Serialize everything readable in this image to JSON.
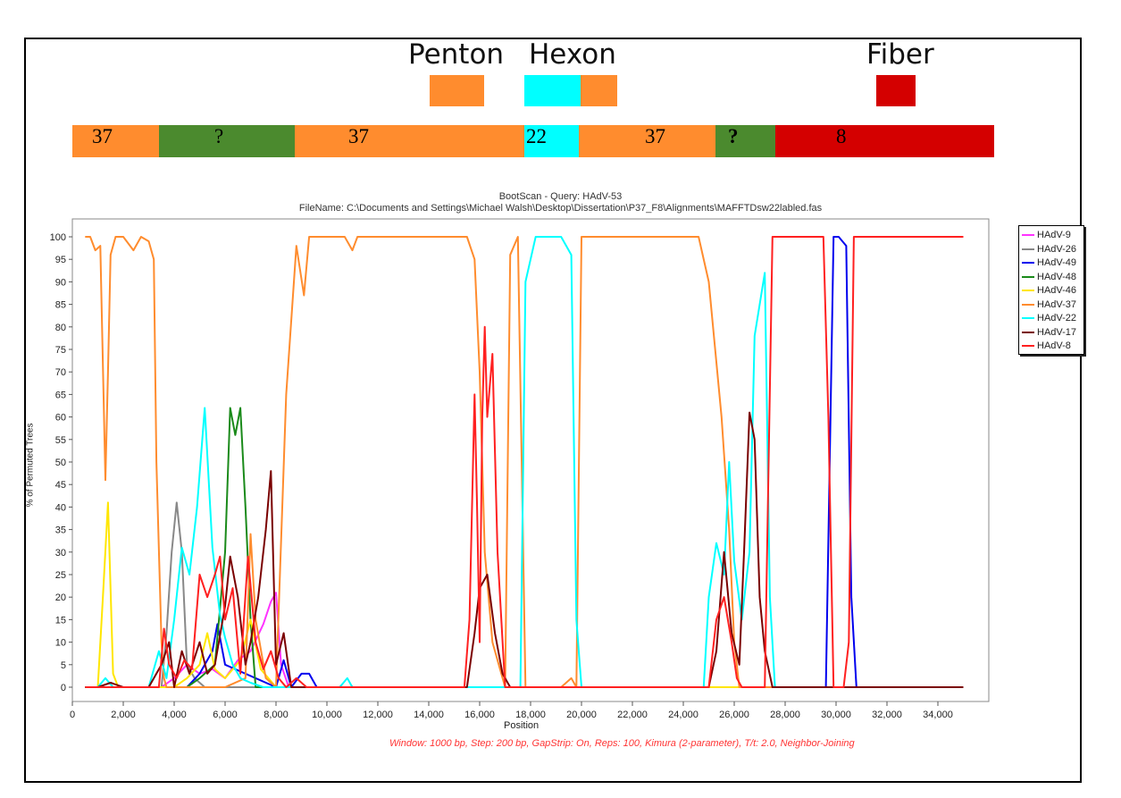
{
  "genes": [
    {
      "label": "Penton",
      "color": "#ff8c2e"
    },
    {
      "label": "Hexon",
      "color": "#00ffff"
    },
    {
      "label": "Fiber",
      "color": "#d40000"
    }
  ],
  "genome_bar": [
    {
      "label": "37",
      "color": "#ff8c2e"
    },
    {
      "label": "?",
      "color": "#4b8a2e"
    },
    {
      "label": "37",
      "color": "#ff8c2e"
    },
    {
      "label": "22",
      "color": "#00ffff"
    },
    {
      "label": "37",
      "color": "#ff8c2e"
    },
    {
      "label": "?",
      "color": "#4b8a2e"
    },
    {
      "label": "8",
      "color": "#d40000"
    }
  ],
  "chart_data": {
    "type": "line",
    "title": "BootScan - Query: HAdV-53",
    "subtitle": "FileName: C:\\Documents and Settings\\Michael Walsh\\Desktop\\Dissertation\\P37_F8\\Alignments\\MAFFTDsw22labled.fas",
    "xlabel": "Position",
    "ylabel": "% of Permuted Trees",
    "xlim": [
      0,
      36000
    ],
    "ylim": [
      0,
      100
    ],
    "xticks": [
      "0",
      "2,000",
      "4,000",
      "6,000",
      "8,000",
      "10,000",
      "12,000",
      "14,000",
      "16,000",
      "18,000",
      "20,000",
      "22,000",
      "24,000",
      "26,000",
      "28,000",
      "30,000",
      "32,000",
      "34,000"
    ],
    "yticks": [
      "0",
      "5",
      "10",
      "15",
      "20",
      "25",
      "30",
      "35",
      "40",
      "45",
      "50",
      "55",
      "60",
      "65",
      "70",
      "75",
      "80",
      "85",
      "90",
      "95",
      "100"
    ],
    "grid": false,
    "legend_position": "right",
    "note": "Window: 1000 bp, Step: 200 bp, GapStrip: On, Reps: 100, Kimura (2-parameter), T/t: 2.0, Neighbor-Joining",
    "series": [
      {
        "name": "HAdV-9",
        "color": "#ff33ff",
        "x": [
          500,
          3500,
          4000,
          4500,
          5000,
          5500,
          6000,
          6500,
          7000,
          7500,
          7800,
          8000,
          8200,
          8500,
          35000
        ],
        "y": [
          0,
          0,
          2,
          5,
          3,
          4,
          2,
          6,
          8,
          14,
          19,
          21,
          5,
          0,
          0
        ]
      },
      {
        "name": "HAdV-26",
        "color": "#888888",
        "x": [
          500,
          3500,
          3700,
          3900,
          4100,
          4300,
          4500,
          4800,
          5200,
          6000,
          35000
        ],
        "y": [
          0,
          0,
          12,
          30,
          41,
          30,
          5,
          2,
          0,
          0,
          0
        ]
      },
      {
        "name": "HAdV-49",
        "color": "#0000ee",
        "x": [
          500,
          4500,
          5000,
          5500,
          5700,
          6000,
          8000,
          8300,
          8600,
          9000,
          9300,
          9600,
          29600,
          29900,
          30100,
          30400,
          30600,
          30800,
          35000
        ],
        "y": [
          0,
          0,
          3,
          8,
          14,
          5,
          0,
          6,
          0,
          3,
          3,
          0,
          0,
          100,
          100,
          98,
          20,
          0,
          0
        ]
      },
      {
        "name": "HAdV-48",
        "color": "#1a8a1a",
        "x": [
          500,
          4500,
          5000,
          5600,
          6000,
          6200,
          6400,
          6600,
          6800,
          7000,
          7200,
          7600,
          35000
        ],
        "y": [
          0,
          0,
          2,
          5,
          30,
          62,
          56,
          62,
          40,
          15,
          0,
          0,
          0
        ]
      },
      {
        "name": "HAdV-46",
        "color": "#ffe600",
        "x": [
          500,
          1000,
          1200,
          1400,
          1600,
          1800,
          4000,
          4500,
          5000,
          5300,
          5600,
          6000,
          6600,
          7000,
          7400,
          8000,
          35000
        ],
        "y": [
          0,
          0,
          20,
          41,
          3,
          0,
          0,
          2,
          5,
          12,
          4,
          2,
          6,
          15,
          4,
          0,
          0
        ]
      },
      {
        "name": "HAdV-37",
        "color": "#ff8c2e",
        "x": [
          500,
          700,
          900,
          1100,
          1300,
          1400,
          1500,
          1700,
          2000,
          2400,
          2700,
          3000,
          3200,
          3300,
          3500,
          3600,
          3700,
          4000,
          4500,
          5000,
          6000,
          6800,
          7000,
          7200,
          7600,
          8000,
          8400,
          8800,
          9100,
          9300,
          10700,
          11000,
          11200,
          15000,
          15500,
          15800,
          16000,
          16200,
          16500,
          17000,
          17200,
          17500,
          17800,
          19200,
          19600,
          19800,
          20000,
          20200,
          24000,
          24600,
          25000,
          25500,
          25800,
          26000,
          26200,
          35000
        ],
        "y": [
          100,
          100,
          97,
          98,
          46,
          70,
          96,
          100,
          100,
          97,
          100,
          99,
          95,
          50,
          10,
          2,
          0,
          0,
          0,
          0,
          0,
          2,
          34,
          15,
          2,
          0,
          65,
          98,
          87,
          100,
          100,
          97,
          100,
          100,
          100,
          95,
          70,
          30,
          10,
          0,
          96,
          100,
          0,
          0,
          2,
          0,
          100,
          100,
          100,
          100,
          90,
          60,
          35,
          10,
          0,
          0
        ]
      },
      {
        "name": "HAdV-22",
        "color": "#00ffff",
        "x": [
          500,
          1000,
          1300,
          1600,
          2000,
          3000,
          3400,
          3700,
          4000,
          4300,
          4600,
          4900,
          5200,
          5500,
          5800,
          6000,
          6300,
          6600,
          7000,
          7500,
          8000,
          10500,
          10800,
          11000,
          17400,
          17600,
          17800,
          18200,
          19200,
          19600,
          19800,
          20000,
          24800,
          25000,
          25300,
          25600,
          25800,
          26000,
          26300,
          26600,
          26800,
          27000,
          27200,
          27400,
          27600,
          35000
        ],
        "y": [
          0,
          0,
          2,
          0,
          0,
          0,
          8,
          2,
          15,
          31,
          25,
          40,
          62,
          31,
          16,
          11,
          5,
          2,
          1,
          0,
          0,
          0,
          2,
          0,
          0,
          0,
          90,
          100,
          100,
          96,
          15,
          0,
          0,
          20,
          32,
          25,
          50,
          28,
          15,
          30,
          78,
          85,
          92,
          20,
          0,
          0
        ]
      },
      {
        "name": "HAdV-17",
        "color": "#7a0000",
        "x": [
          500,
          1000,
          1500,
          2000,
          3000,
          3500,
          3800,
          4000,
          4300,
          4600,
          5000,
          5300,
          5600,
          6000,
          6200,
          6500,
          6800,
          7000,
          7300,
          7600,
          7800,
          8000,
          8300,
          8600,
          15500,
          15800,
          16000,
          16300,
          16600,
          16900,
          17200,
          25000,
          25300,
          25600,
          25900,
          26200,
          26400,
          26600,
          26800,
          27000,
          27200,
          27500,
          35000
        ],
        "y": [
          0,
          0,
          1,
          0,
          0,
          5,
          10,
          0,
          8,
          3,
          10,
          3,
          5,
          18,
          29,
          20,
          5,
          10,
          20,
          35,
          48,
          5,
          12,
          0,
          0,
          12,
          22,
          25,
          12,
          3,
          0,
          0,
          8,
          30,
          12,
          5,
          32,
          61,
          55,
          20,
          8,
          0,
          0
        ]
      },
      {
        "name": "HAdV-8",
        "color": "#ff2020",
        "x": [
          500,
          3400,
          3600,
          3800,
          4100,
          4400,
          4700,
          5000,
          5300,
          5600,
          5800,
          6000,
          6300,
          6600,
          6900,
          7200,
          7500,
          7800,
          8100,
          8400,
          8800,
          9200,
          15400,
          15600,
          15800,
          15900,
          16000,
          16100,
          16200,
          16300,
          16500,
          16700,
          17000,
          17200,
          25000,
          25300,
          25600,
          25900,
          26100,
          26300,
          27200,
          27500,
          27700,
          29500,
          29700,
          29900,
          30300,
          30500,
          30700,
          30900,
          31000,
          35000
        ],
        "y": [
          0,
          0,
          13,
          5,
          2,
          6,
          4,
          25,
          20,
          25,
          29,
          15,
          22,
          3,
          29,
          10,
          4,
          8,
          2,
          0,
          2,
          0,
          0,
          15,
          65,
          40,
          10,
          60,
          80,
          60,
          74,
          30,
          0,
          0,
          0,
          15,
          20,
          10,
          2,
          0,
          0,
          100,
          100,
          100,
          60,
          0,
          0,
          10,
          100,
          100,
          100,
          100
        ]
      }
    ]
  }
}
